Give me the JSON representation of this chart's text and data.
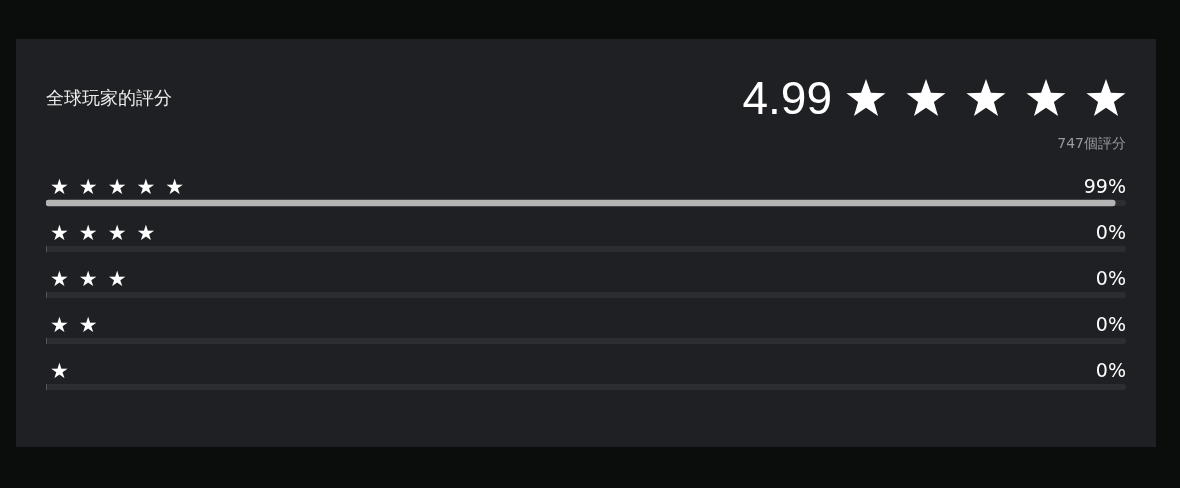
{
  "chart_data": {
    "type": "bar",
    "orientation": "horizontal",
    "title": "全球玩家的評分",
    "annotations": [
      "4.99",
      "747個評分"
    ],
    "categories": [
      "★★★★★",
      "★★★★",
      "★★★",
      "★★",
      "★"
    ],
    "values": [
      99,
      0,
      0,
      0,
      0
    ],
    "value_labels": [
      "99%",
      "0%",
      "0%",
      "0%",
      "0%"
    ],
    "color": "#b4b4b4",
    "xlim": [
      0,
      100
    ],
    "tick_labels": "y"
  }
}
